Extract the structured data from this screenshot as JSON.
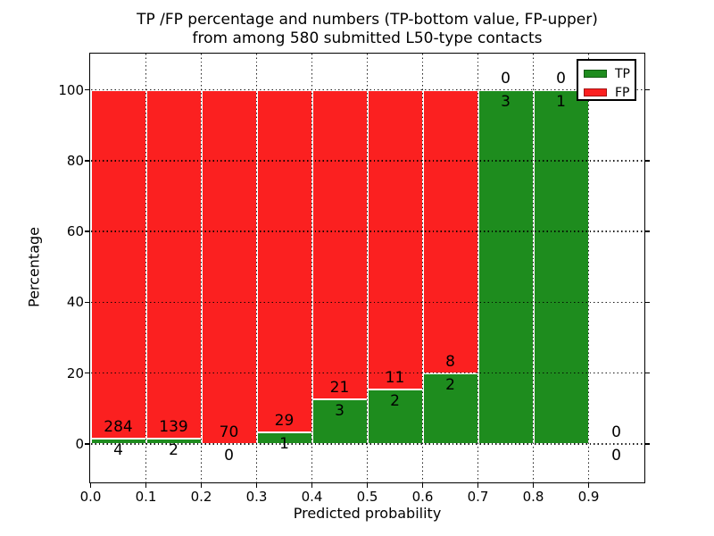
{
  "figure": {
    "title_line1": "TP /FP percentage and numbers (TP-bottom value, FP-upper)",
    "title_line2": "from among 580 submitted L50-type contacts",
    "xlabel": "Predicted probability",
    "ylabel": "Percentage"
  },
  "colors": {
    "tp": "#1e8c1e",
    "fp": "#fb2020",
    "bar_edge": "#ffffff",
    "grid": "#000000",
    "spine": "#000000",
    "background": "#ffffff"
  },
  "legend": {
    "position": "upper-right",
    "entries": [
      {
        "label": "TP",
        "color": "#1e8c1e"
      },
      {
        "label": "FP",
        "color": "#fb2020"
      }
    ]
  },
  "chart_data": {
    "type": "bar",
    "stacked": true,
    "unit": "percent",
    "title": "TP /FP percentage and numbers (TP-bottom value, FP-upper) from among 580 submitted L50-type contacts",
    "xlabel": "Predicted probability",
    "ylabel": "Percentage",
    "total_contacts": 580,
    "grid": true,
    "xlim": [
      0.0,
      1.0
    ],
    "ylim": [
      -10.7,
      110.2
    ],
    "x_tick_labels": [
      "0.0",
      "0.1",
      "0.2",
      "0.3",
      "0.4",
      "0.5",
      "0.6",
      "0.7",
      "0.8",
      "0.9"
    ],
    "y_ticks": [
      0,
      20,
      40,
      60,
      80,
      100
    ],
    "bins": [
      {
        "x_start": 0.0,
        "x_end": 0.1,
        "tp": 4,
        "fp": 284,
        "tp_pct": 1.39,
        "fp_pct": 98.61
      },
      {
        "x_start": 0.1,
        "x_end": 0.2,
        "tp": 2,
        "fp": 139,
        "tp_pct": 1.42,
        "fp_pct": 98.58
      },
      {
        "x_start": 0.2,
        "x_end": 0.3,
        "tp": 0,
        "fp": 70,
        "tp_pct": 0.0,
        "fp_pct": 100.0
      },
      {
        "x_start": 0.3,
        "x_end": 0.4,
        "tp": 1,
        "fp": 29,
        "tp_pct": 3.33,
        "fp_pct": 96.67
      },
      {
        "x_start": 0.4,
        "x_end": 0.5,
        "tp": 3,
        "fp": 21,
        "tp_pct": 12.5,
        "fp_pct": 87.5
      },
      {
        "x_start": 0.5,
        "x_end": 0.6,
        "tp": 2,
        "fp": 11,
        "tp_pct": 15.38,
        "fp_pct": 84.62
      },
      {
        "x_start": 0.6,
        "x_end": 0.7,
        "tp": 2,
        "fp": 8,
        "tp_pct": 20.0,
        "fp_pct": 80.0
      },
      {
        "x_start": 0.7,
        "x_end": 0.8,
        "tp": 3,
        "fp": 0,
        "tp_pct": 100.0,
        "fp_pct": 0.0
      },
      {
        "x_start": 0.8,
        "x_end": 0.9,
        "tp": 1,
        "fp": 0,
        "tp_pct": 100.0,
        "fp_pct": 0.0
      },
      {
        "x_start": 0.9,
        "x_end": 1.0,
        "tp": 0,
        "fp": 0,
        "tp_pct": null,
        "fp_pct": null
      }
    ],
    "series": [
      {
        "name": "TP",
        "counts": [
          4,
          2,
          0,
          1,
          3,
          2,
          2,
          3,
          1,
          0
        ]
      },
      {
        "name": "FP",
        "counts": [
          284,
          139,
          70,
          29,
          21,
          11,
          8,
          0,
          0,
          0
        ]
      }
    ],
    "legend_entries": [
      "TP",
      "FP"
    ]
  }
}
